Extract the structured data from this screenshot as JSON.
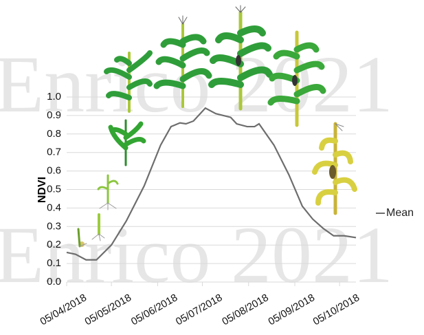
{
  "chart_data": {
    "type": "line",
    "watermarks": [
      "Enrico 2021",
      "Enrico 2021"
    ],
    "y_label": "NDVI",
    "ylim": [
      0,
      1
    ],
    "yticks": [
      {
        "value": 0,
        "label": "0.0"
      },
      0.1,
      0.2,
      0.3,
      0.4,
      0.5,
      0.6,
      0.7,
      0.8,
      0.9,
      {
        "value": 1,
        "label": "1.0"
      }
    ],
    "xlim": [
      "05/04/2018",
      "16/10/2018"
    ],
    "xticks": [
      "05/04/2018",
      "05/05/2018",
      "05/06/2018",
      "05/07/2018",
      "05/08/2018",
      "05/09/2018",
      "05/10/2018"
    ],
    "grid": true,
    "legend": "right",
    "series": [
      {
        "name": "Mean",
        "color": "#6d6d6d",
        "x": [
          "05/04/2018",
          "11/04/2018",
          "18/04/2018",
          "25/04/2018",
          "05/05/2018",
          "15/05/2018",
          "27/05/2018",
          "07/06/2018",
          "14/06/2018",
          "20/06/2018",
          "24/06/2018",
          "29/06/2018",
          "07/07/2018",
          "14/07/2018",
          "24/07/2018",
          "28/07/2018",
          "04/08/2018",
          "09/08/2018",
          "12/08/2018",
          "22/08/2018",
          "01/09/2018",
          "10/09/2018",
          "17/09/2018",
          "24/09/2018",
          "01/10/2018",
          "08/10/2018",
          "16/10/2018"
        ],
        "values": [
          0.16,
          0.15,
          0.12,
          0.12,
          0.2,
          0.33,
          0.52,
          0.74,
          0.84,
          0.86,
          0.855,
          0.87,
          0.94,
          0.91,
          0.89,
          0.855,
          0.84,
          0.84,
          0.855,
          0.74,
          0.58,
          0.41,
          0.34,
          0.29,
          0.25,
          0.25,
          0.24
        ]
      }
    ]
  }
}
